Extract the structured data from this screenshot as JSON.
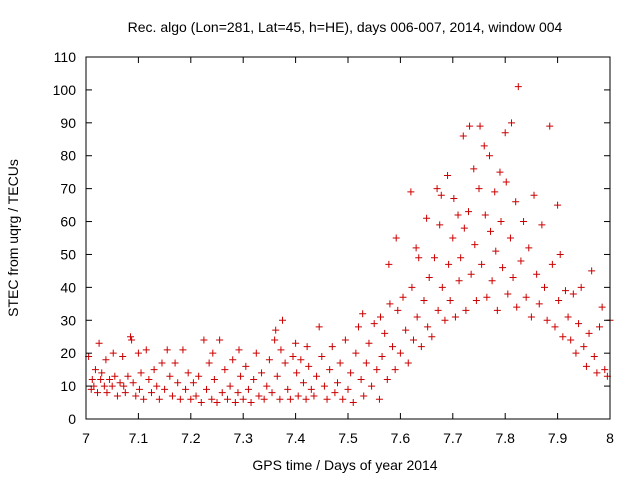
{
  "chart_data": {
    "type": "scatter",
    "title": "Rec. algo (Lon=281, Lat=45, h=HE), days 006-007, 2014, window 004",
    "xlabel": "GPS time / Days of year 2014",
    "ylabel": "STEC from uqrg / TECUs",
    "xlim": [
      7,
      8
    ],
    "ylim": [
      0,
      110
    ],
    "xticks": [
      7,
      7.1,
      7.2,
      7.3,
      7.4,
      7.5,
      7.6,
      7.7,
      7.8,
      7.9,
      8
    ],
    "xtick_labels": [
      "7",
      "7.1",
      "7.2",
      "7.3",
      "7.4",
      "7.5",
      "7.6",
      "7.7",
      "7.8",
      "7.9",
      "8"
    ],
    "yticks": [
      0,
      10,
      20,
      30,
      40,
      50,
      60,
      70,
      80,
      90,
      100,
      110
    ],
    "ytick_labels": [
      "0",
      "10",
      "20",
      "30",
      "40",
      "50",
      "60",
      "70",
      "80",
      "90",
      "100",
      "110"
    ],
    "grid": false,
    "marker": "plus",
    "color": "#cc0000",
    "points": [
      [
        7.005,
        19
      ],
      [
        7.01,
        9
      ],
      [
        7.012,
        12
      ],
      [
        7.015,
        10
      ],
      [
        7.018,
        15
      ],
      [
        7.022,
        8
      ],
      [
        7.025,
        23
      ],
      [
        7.028,
        12
      ],
      [
        7.03,
        14
      ],
      [
        7.035,
        10
      ],
      [
        7.038,
        18
      ],
      [
        7.04,
        8
      ],
      [
        7.045,
        12
      ],
      [
        7.05,
        10
      ],
      [
        7.052,
        20
      ],
      [
        7.055,
        13
      ],
      [
        7.06,
        7
      ],
      [
        7.065,
        11
      ],
      [
        7.07,
        19
      ],
      [
        7.072,
        10
      ],
      [
        7.075,
        8
      ],
      [
        7.08,
        13
      ],
      [
        7.085,
        25
      ],
      [
        7.087,
        24
      ],
      [
        7.09,
        11
      ],
      [
        7.095,
        7
      ],
      [
        7.1,
        20
      ],
      [
        7.102,
        9
      ],
      [
        7.105,
        14
      ],
      [
        7.11,
        6
      ],
      [
        7.115,
        21
      ],
      [
        7.12,
        12
      ],
      [
        7.125,
        8
      ],
      [
        7.13,
        15
      ],
      [
        7.135,
        10
      ],
      [
        7.14,
        6
      ],
      [
        7.145,
        17
      ],
      [
        7.15,
        9
      ],
      [
        7.155,
        21
      ],
      [
        7.16,
        13
      ],
      [
        7.165,
        7
      ],
      [
        7.17,
        17
      ],
      [
        7.175,
        11
      ],
      [
        7.18,
        6
      ],
      [
        7.185,
        21
      ],
      [
        7.19,
        9
      ],
      [
        7.195,
        14
      ],
      [
        7.2,
        6
      ],
      [
        7.205,
        11
      ],
      [
        7.21,
        7
      ],
      [
        7.215,
        13
      ],
      [
        7.22,
        5
      ],
      [
        7.225,
        24
      ],
      [
        7.23,
        9
      ],
      [
        7.235,
        17
      ],
      [
        7.24,
        6
      ],
      [
        7.242,
        20
      ],
      [
        7.245,
        12
      ],
      [
        7.25,
        5
      ],
      [
        7.255,
        24
      ],
      [
        7.26,
        8
      ],
      [
        7.265,
        15
      ],
      [
        7.27,
        6
      ],
      [
        7.275,
        10
      ],
      [
        7.28,
        18
      ],
      [
        7.285,
        5
      ],
      [
        7.29,
        8
      ],
      [
        7.292,
        21
      ],
      [
        7.295,
        13
      ],
      [
        7.3,
        6
      ],
      [
        7.305,
        16
      ],
      [
        7.31,
        9
      ],
      [
        7.315,
        5
      ],
      [
        7.32,
        12
      ],
      [
        7.325,
        20
      ],
      [
        7.33,
        7
      ],
      [
        7.335,
        14
      ],
      [
        7.34,
        6
      ],
      [
        7.345,
        10
      ],
      [
        7.35,
        18
      ],
      [
        7.355,
        8
      ],
      [
        7.36,
        24
      ],
      [
        7.362,
        27
      ],
      [
        7.365,
        13
      ],
      [
        7.37,
        6
      ],
      [
        7.372,
        21
      ],
      [
        7.375,
        30
      ],
      [
        7.38,
        17
      ],
      [
        7.385,
        9
      ],
      [
        7.39,
        6
      ],
      [
        7.395,
        19
      ],
      [
        7.4,
        23
      ],
      [
        7.402,
        14
      ],
      [
        7.405,
        7
      ],
      [
        7.41,
        18
      ],
      [
        7.415,
        11
      ],
      [
        7.42,
        6
      ],
      [
        7.422,
        22
      ],
      [
        7.425,
        16
      ],
      [
        7.43,
        9
      ],
      [
        7.435,
        7
      ],
      [
        7.44,
        13
      ],
      [
        7.445,
        28
      ],
      [
        7.45,
        19
      ],
      [
        7.455,
        10
      ],
      [
        7.46,
        6
      ],
      [
        7.465,
        15
      ],
      [
        7.47,
        22
      ],
      [
        7.475,
        8
      ],
      [
        7.48,
        11
      ],
      [
        7.485,
        17
      ],
      [
        7.49,
        6
      ],
      [
        7.495,
        24
      ],
      [
        7.5,
        9
      ],
      [
        7.505,
        14
      ],
      [
        7.51,
        5
      ],
      [
        7.515,
        20
      ],
      [
        7.52,
        28
      ],
      [
        7.525,
        12
      ],
      [
        7.528,
        32
      ],
      [
        7.53,
        7
      ],
      [
        7.535,
        17
      ],
      [
        7.54,
        23
      ],
      [
        7.545,
        10
      ],
      [
        7.55,
        29
      ],
      [
        7.555,
        15
      ],
      [
        7.56,
        6
      ],
      [
        7.562,
        31
      ],
      [
        7.565,
        19
      ],
      [
        7.57,
        26
      ],
      [
        7.575,
        12
      ],
      [
        7.578,
        47
      ],
      [
        7.58,
        35
      ],
      [
        7.585,
        22
      ],
      [
        7.59,
        15
      ],
      [
        7.592,
        55
      ],
      [
        7.595,
        33
      ],
      [
        7.6,
        20
      ],
      [
        7.605,
        37
      ],
      [
        7.61,
        27
      ],
      [
        7.615,
        17
      ],
      [
        7.62,
        69
      ],
      [
        7.622,
        40
      ],
      [
        7.625,
        24
      ],
      [
        7.63,
        52
      ],
      [
        7.632,
        31
      ],
      [
        7.635,
        49
      ],
      [
        7.64,
        22
      ],
      [
        7.645,
        36
      ],
      [
        7.65,
        61
      ],
      [
        7.652,
        28
      ],
      [
        7.655,
        43
      ],
      [
        7.66,
        25
      ],
      [
        7.665,
        49
      ],
      [
        7.67,
        70
      ],
      [
        7.672,
        33
      ],
      [
        7.675,
        59
      ],
      [
        7.678,
        68
      ],
      [
        7.68,
        40
      ],
      [
        7.685,
        30
      ],
      [
        7.69,
        74
      ],
      [
        7.692,
        47
      ],
      [
        7.695,
        36
      ],
      [
        7.7,
        55
      ],
      [
        7.702,
        67
      ],
      [
        7.705,
        31
      ],
      [
        7.71,
        62
      ],
      [
        7.712,
        42
      ],
      [
        7.715,
        49
      ],
      [
        7.72,
        86
      ],
      [
        7.722,
        58
      ],
      [
        7.725,
        33
      ],
      [
        7.73,
        63
      ],
      [
        7.732,
        89
      ],
      [
        7.735,
        44
      ],
      [
        7.74,
        76
      ],
      [
        7.742,
        53
      ],
      [
        7.745,
        36
      ],
      [
        7.75,
        70
      ],
      [
        7.752,
        89
      ],
      [
        7.755,
        47
      ],
      [
        7.76,
        83
      ],
      [
        7.762,
        62
      ],
      [
        7.765,
        37
      ],
      [
        7.77,
        80
      ],
      [
        7.772,
        57
      ],
      [
        7.775,
        42
      ],
      [
        7.78,
        69
      ],
      [
        7.782,
        51
      ],
      [
        7.785,
        33
      ],
      [
        7.79,
        75
      ],
      [
        7.792,
        60
      ],
      [
        7.795,
        46
      ],
      [
        7.8,
        87
      ],
      [
        7.802,
        72
      ],
      [
        7.805,
        38
      ],
      [
        7.81,
        55
      ],
      [
        7.812,
        90
      ],
      [
        7.815,
        43
      ],
      [
        7.82,
        66
      ],
      [
        7.822,
        34
      ],
      [
        7.825,
        101
      ],
      [
        7.83,
        48
      ],
      [
        7.835,
        60
      ],
      [
        7.84,
        37
      ],
      [
        7.845,
        52
      ],
      [
        7.85,
        31
      ],
      [
        7.855,
        68
      ],
      [
        7.86,
        44
      ],
      [
        7.865,
        35
      ],
      [
        7.87,
        59
      ],
      [
        7.875,
        40
      ],
      [
        7.88,
        30
      ],
      [
        7.885,
        89
      ],
      [
        7.89,
        47
      ],
      [
        7.895,
        28
      ],
      [
        7.9,
        65
      ],
      [
        7.902,
        36
      ],
      [
        7.905,
        50
      ],
      [
        7.91,
        25
      ],
      [
        7.915,
        39
      ],
      [
        7.92,
        31
      ],
      [
        7.925,
        24
      ],
      [
        7.93,
        38
      ],
      [
        7.935,
        20
      ],
      [
        7.94,
        29
      ],
      [
        7.945,
        40
      ],
      [
        7.95,
        22
      ],
      [
        7.955,
        16
      ],
      [
        7.96,
        26
      ],
      [
        7.965,
        45
      ],
      [
        7.97,
        19
      ],
      [
        7.975,
        14
      ],
      [
        7.98,
        28
      ],
      [
        7.985,
        34
      ],
      [
        7.99,
        15
      ],
      [
        7.995,
        13
      ],
      [
        8.0,
        30
      ]
    ]
  }
}
